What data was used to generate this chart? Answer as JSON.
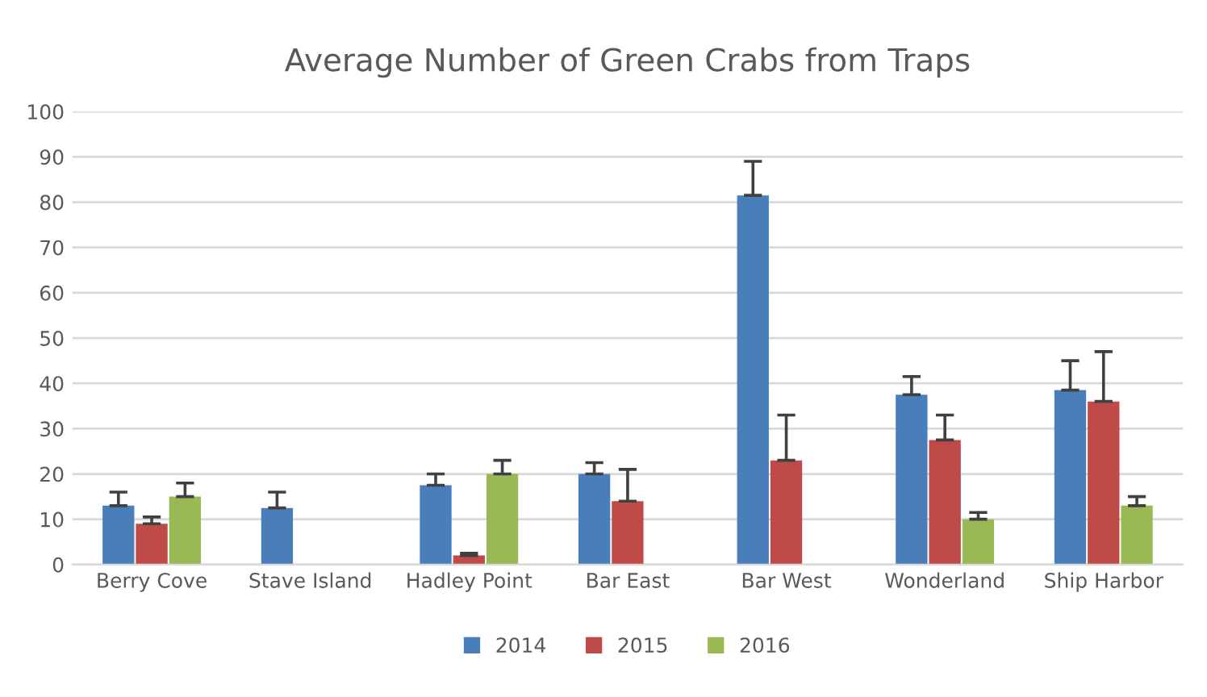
{
  "chart_data": {
    "type": "bar",
    "title": "Average Number of Green Crabs from Traps",
    "categories": [
      "Berry Cove",
      "Stave Island",
      "Hadley Point",
      "Bar East",
      "Bar West",
      "Wonderland",
      "Ship Harbor"
    ],
    "series": [
      {
        "name": "2014",
        "color": "#4a7ebb",
        "values": [
          13,
          12.5,
          17.5,
          20,
          81.5,
          37.5,
          38.5
        ],
        "errors": [
          3,
          3.5,
          2.5,
          2.5,
          7.5,
          4,
          6.5
        ]
      },
      {
        "name": "2015",
        "color": "#be4b48",
        "values": [
          9,
          null,
          2,
          14,
          23,
          27.5,
          36
        ],
        "errors": [
          1.5,
          null,
          0.5,
          7,
          10,
          5.5,
          11
        ]
      },
      {
        "name": "2016",
        "color": "#98b954",
        "values": [
          15,
          null,
          20,
          null,
          null,
          10,
          13
        ],
        "errors": [
          3,
          null,
          3,
          null,
          null,
          1.5,
          2
        ]
      }
    ],
    "ylim": [
      0,
      100
    ],
    "yticks": [
      0,
      10,
      20,
      30,
      40,
      50,
      60,
      70,
      80,
      90,
      100
    ],
    "grid": "y",
    "legend": "bottom"
  }
}
